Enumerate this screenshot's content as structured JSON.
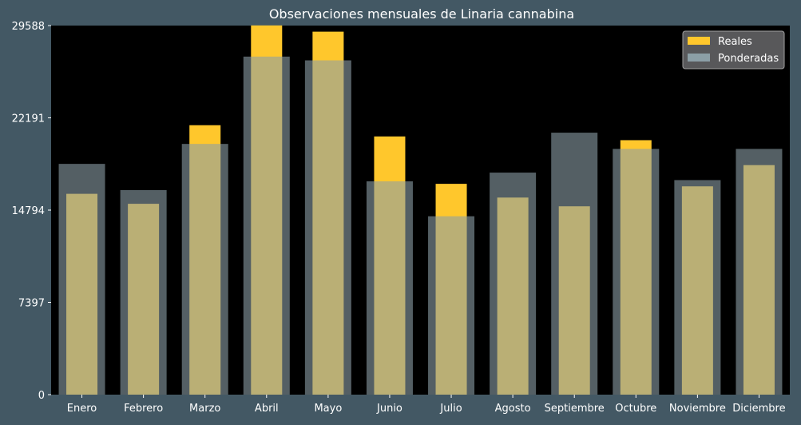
{
  "chart_data": {
    "type": "bar",
    "title": "Observaciones mensuales de Linaria cannabina",
    "xlabel": "",
    "ylabel": "",
    "categories": [
      "Enero",
      "Febrero",
      "Marzo",
      "Abril",
      "Mayo",
      "Junio",
      "Julio",
      "Agosto",
      "Septiembre",
      "Octubre",
      "Noviembre",
      "Diciembre"
    ],
    "series": [
      {
        "name": "Reales",
        "color": "#ffc72c",
        "values": [
          16100,
          15300,
          21600,
          29600,
          29100,
          20700,
          16900,
          15800,
          15100,
          20400,
          16700,
          18400
        ]
      },
      {
        "name": "Ponderadas",
        "color": "#8c9fa6",
        "values": [
          18500,
          16400,
          20100,
          27100,
          26800,
          17100,
          14300,
          17800,
          21000,
          19700,
          17200,
          19700
        ]
      }
    ],
    "ylim": [
      0,
      29588
    ],
    "yticks": [
      "0",
      "7397",
      "14794",
      "22191",
      "29588"
    ],
    "legend": "top-right",
    "grid": false,
    "plot_background": "#000000",
    "figure_background": "#435864"
  }
}
